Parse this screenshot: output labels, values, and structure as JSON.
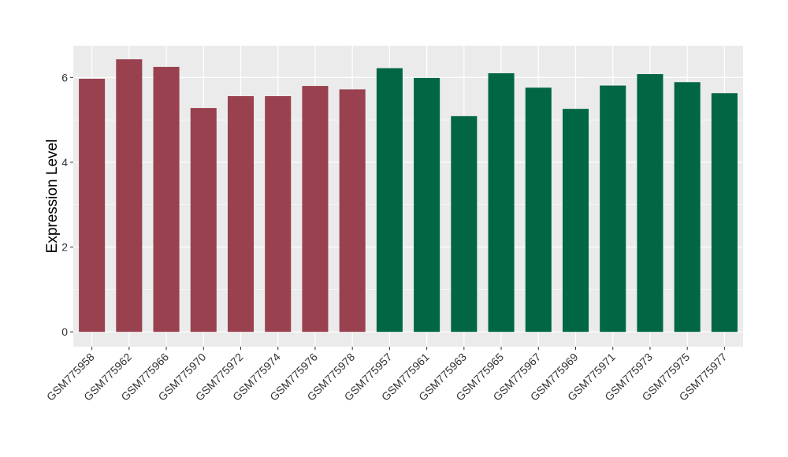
{
  "chart_data": {
    "type": "bar",
    "title": "",
    "xlabel": "",
    "ylabel": "Expression Level",
    "ylim": [
      -0.35,
      6.75
    ],
    "yticks": [
      0,
      2,
      4,
      6
    ],
    "grid": true,
    "categories": [
      "GSM775958",
      "GSM775962",
      "GSM775966",
      "GSM775970",
      "GSM775972",
      "GSM775974",
      "GSM775976",
      "GSM775978",
      "GSM775957",
      "GSM775961",
      "GSM775963",
      "GSM775965",
      "GSM775967",
      "GSM775969",
      "GSM775971",
      "GSM775973",
      "GSM775975",
      "GSM775977"
    ],
    "values": [
      5.97,
      6.43,
      6.25,
      5.28,
      5.56,
      5.56,
      5.8,
      5.72,
      6.22,
      5.99,
      5.09,
      6.1,
      5.76,
      5.26,
      5.81,
      6.08,
      5.89,
      5.63
    ],
    "groups": [
      "a",
      "a",
      "a",
      "a",
      "a",
      "a",
      "a",
      "a",
      "b",
      "b",
      "b",
      "b",
      "b",
      "b",
      "b",
      "b",
      "b",
      "b"
    ],
    "colors": {
      "a": "#99414f",
      "b": "#006644"
    },
    "panel_background": "#ebebeb",
    "gridline_color": "#ffffff"
  }
}
